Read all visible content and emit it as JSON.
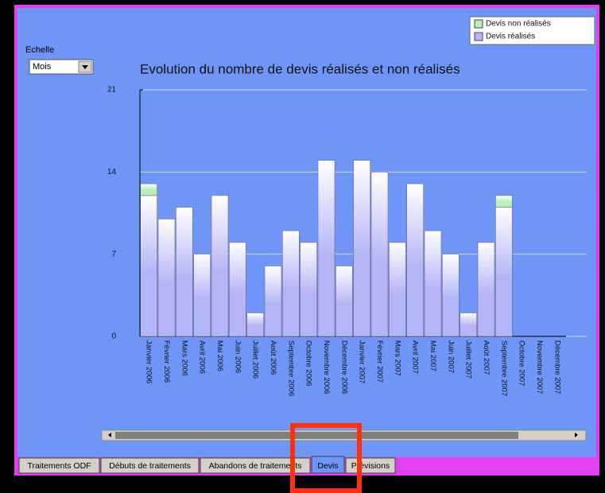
{
  "echelle": {
    "label": "Echelle",
    "value": "Mois"
  },
  "tabs": [
    "Traitements ODF",
    "Débuts de traitements",
    "Abandons de traitements",
    "Devis",
    "Prévisions"
  ],
  "chart_data": {
    "type": "bar",
    "stacked": true,
    "title": "Evolution du nombre de devis réalisés et non réalisés",
    "categories": [
      "Janvier 2006",
      "Février 2006",
      "Mars 2006",
      "Avril 2006",
      "Mai 2006",
      "Juin 2006",
      "Juillet 2006",
      "Août 2006",
      "Septembre 2006",
      "Octobre 2006",
      "Novembre 2006",
      "Décembre 2006",
      "Janvier 2007",
      "Février 2007",
      "Mars 2007",
      "Avril 2007",
      "Mai 2007",
      "Juin 2007",
      "Juillet 2007",
      "Août 2007",
      "Septembre 2007",
      "Octobre 2007",
      "Novembre 2007",
      "Décembre 2007"
    ],
    "series": [
      {
        "name": "Devis réalisés",
        "color": "#b4b4f6",
        "values": [
          12,
          10,
          11,
          7,
          12,
          8,
          2,
          6,
          9,
          8,
          15,
          6,
          15,
          14,
          8,
          13,
          9,
          7,
          2,
          8,
          11,
          0,
          0,
          0
        ]
      },
      {
        "name": "Devis non réalisés",
        "color": "#b8f0b8",
        "values": [
          1,
          0,
          0,
          0,
          0,
          0,
          0,
          0,
          0,
          0,
          0,
          0,
          0,
          0,
          0,
          0,
          0,
          0,
          0,
          0,
          1,
          0,
          0,
          0
        ]
      }
    ],
    "ylim": [
      0,
      21
    ],
    "yticks": [
      0,
      7,
      14,
      21
    ],
    "grid": true,
    "legend": "top-right"
  }
}
